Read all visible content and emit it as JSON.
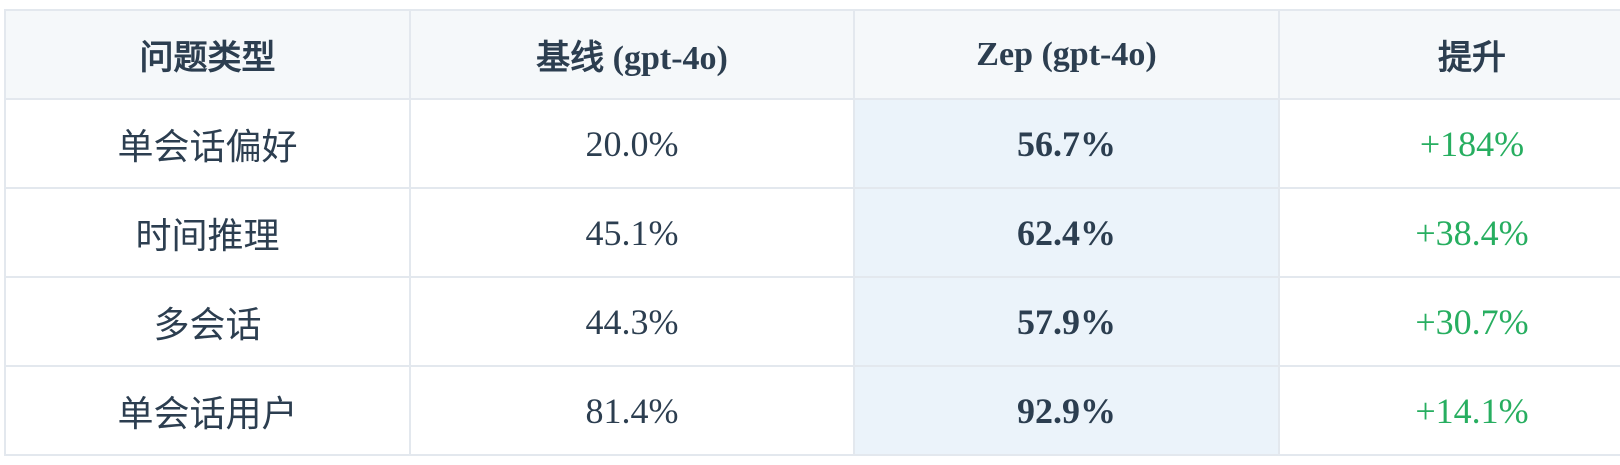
{
  "table": {
    "headers": [
      "问题类型",
      "基线 (gpt-4o)",
      "Zep (gpt-4o)",
      "提升"
    ],
    "rows": [
      {
        "type": "单会话偏好",
        "baseline": "20.0%",
        "zep": "56.7%",
        "gain": "+184%"
      },
      {
        "type": "时间推理",
        "baseline": "45.1%",
        "zep": "62.4%",
        "gain": "+38.4%"
      },
      {
        "type": "多会话",
        "baseline": "44.3%",
        "zep": "57.9%",
        "gain": "+30.7%"
      },
      {
        "type": "单会话用户",
        "baseline": "81.4%",
        "zep": "92.9%",
        "gain": "+14.1%"
      }
    ]
  },
  "colors": {
    "text": "#2c3e50",
    "header_bg": "#f5f8fa",
    "highlight_bg": "#ebf3fa",
    "gain": "#27ae60",
    "border": "#e3e8ee"
  }
}
